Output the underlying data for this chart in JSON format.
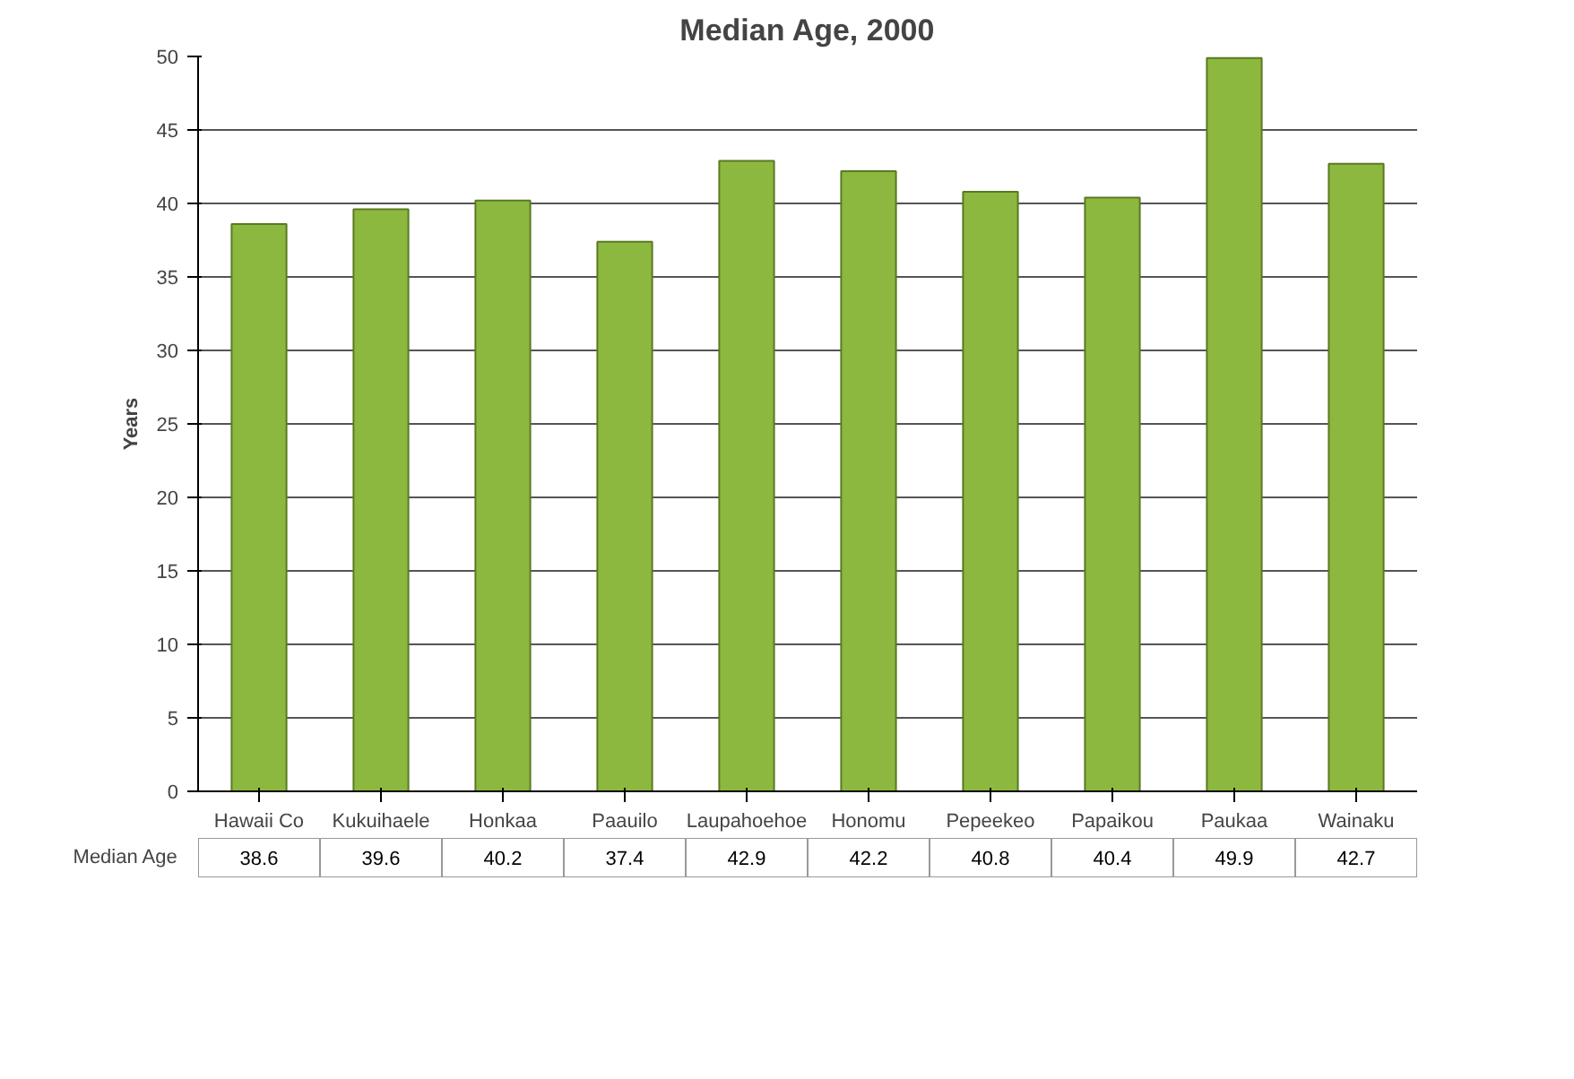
{
  "chart_data": {
    "type": "bar",
    "title": "Median Age, 2000",
    "ylabel": "Years",
    "categories": [
      "Hawaii Co",
      "Kukuihaele",
      "Honkaa",
      "Paauilo",
      "Laupahoehoe",
      "Honomu",
      "Pepeekeo",
      "Papaikou",
      "Paukaa",
      "Wainaku"
    ],
    "series": [
      {
        "name": "Median Age",
        "color": "#8db83f",
        "values": [
          38.6,
          39.6,
          40.2,
          37.4,
          42.9,
          42.2,
          40.8,
          40.4,
          49.9,
          42.7
        ]
      }
    ],
    "ylim": [
      0,
      50
    ],
    "yticks": [
      0,
      5,
      10,
      15,
      20,
      25,
      30,
      35,
      40,
      45,
      50
    ],
    "grid": "y",
    "data_labels": true
  }
}
